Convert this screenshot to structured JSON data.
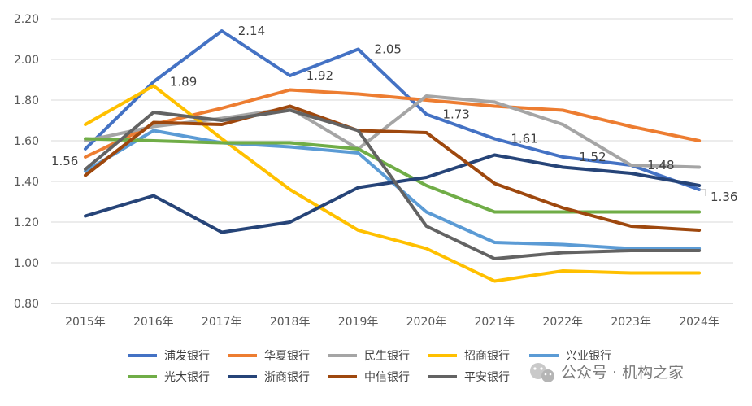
{
  "chart_data": {
    "type": "line",
    "title": "",
    "xlabel": "",
    "ylabel": "",
    "ylim": [
      0.8,
      2.2
    ],
    "yticks": [
      "0.80",
      "1.00",
      "1.20",
      "1.40",
      "1.60",
      "1.80",
      "2.00",
      "2.20"
    ],
    "grid": true,
    "legend_position": "bottom",
    "categories": [
      "2015年",
      "2016年",
      "2017年",
      "2018年",
      "2019年",
      "2020年",
      "2021年",
      "2022年",
      "2023年",
      "2024年"
    ],
    "series": [
      {
        "name": "浦发银行",
        "color": "#4472C4",
        "values": [
          1.56,
          1.89,
          2.14,
          1.92,
          2.05,
          1.73,
          1.61,
          1.52,
          1.48,
          1.36
        ]
      },
      {
        "name": "华夏银行",
        "color": "#ED7D31",
        "values": [
          1.52,
          1.68,
          1.76,
          1.85,
          1.83,
          1.8,
          1.77,
          1.75,
          1.67,
          1.6
        ]
      },
      {
        "name": "民生银行",
        "color": "#A5A5A5",
        "values": [
          1.6,
          1.67,
          1.71,
          1.76,
          1.56,
          1.82,
          1.79,
          1.68,
          1.48,
          1.47
        ]
      },
      {
        "name": "招商银行",
        "color": "#FFC000",
        "values": [
          1.68,
          1.87,
          1.61,
          1.36,
          1.16,
          1.07,
          0.91,
          0.96,
          0.95,
          0.95
        ]
      },
      {
        "name": "兴业银行",
        "color": "#5B9BD5",
        "values": [
          1.45,
          1.65,
          1.59,
          1.57,
          1.54,
          1.25,
          1.1,
          1.09,
          1.07,
          1.07
        ]
      },
      {
        "name": "光大银行",
        "color": "#70AD47",
        "values": [
          1.61,
          1.6,
          1.59,
          1.59,
          1.56,
          1.38,
          1.25,
          1.25,
          1.25,
          1.25
        ]
      },
      {
        "name": "浙商银行",
        "color": "#264478",
        "values": [
          1.23,
          1.33,
          1.15,
          1.2,
          1.37,
          1.42,
          1.53,
          1.47,
          1.44,
          1.38
        ]
      },
      {
        "name": "中信银行",
        "color": "#9E480E",
        "values": [
          1.43,
          1.69,
          1.68,
          1.77,
          1.65,
          1.64,
          1.39,
          1.27,
          1.18,
          1.16
        ]
      },
      {
        "name": "平安银行",
        "color": "#636363",
        "values": [
          1.46,
          1.74,
          1.7,
          1.75,
          1.65,
          1.18,
          1.02,
          1.05,
          1.06,
          1.06
        ]
      }
    ],
    "data_labels": [
      {
        "series": "浦发银行",
        "index": 0,
        "text": "1.56"
      },
      {
        "series": "浦发银行",
        "index": 1,
        "text": "1.89"
      },
      {
        "series": "浦发银行",
        "index": 2,
        "text": "2.14"
      },
      {
        "series": "浦发银行",
        "index": 3,
        "text": "1.92"
      },
      {
        "series": "浦发银行",
        "index": 4,
        "text": "2.05"
      },
      {
        "series": "浦发银行",
        "index": 5,
        "text": "1.73"
      },
      {
        "series": "浦发银行",
        "index": 6,
        "text": "1.61"
      },
      {
        "series": "浦发银行",
        "index": 7,
        "text": "1.52"
      },
      {
        "series": "浦发银行",
        "index": 8,
        "text": "1.48"
      },
      {
        "series": "浦发银行",
        "index": 9,
        "text": "1.36"
      }
    ]
  },
  "watermark": {
    "text": "公众号 · 机构之家",
    "icon": "wechat-icon"
  }
}
